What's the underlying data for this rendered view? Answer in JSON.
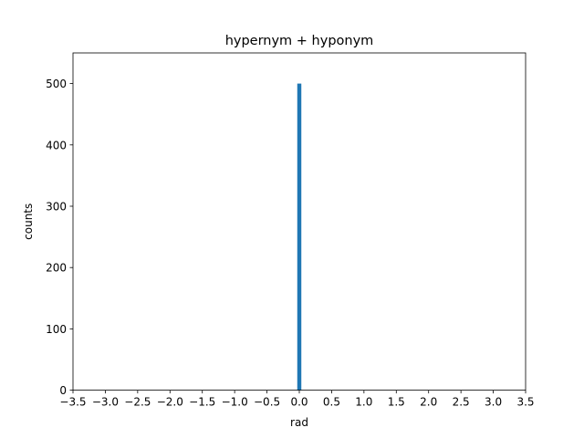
{
  "chart_data": {
    "type": "bar",
    "title": "hypernym + hyponym",
    "xlabel": "rad",
    "ylabel": "counts",
    "xlim": [
      -3.5,
      3.5
    ],
    "ylim": [
      0,
      550
    ],
    "xticks": [
      -3.5,
      -3.0,
      -2.5,
      -2.0,
      -1.5,
      -1.0,
      -0.5,
      0.0,
      0.5,
      1.0,
      1.5,
      2.0,
      2.5,
      3.0,
      3.5
    ],
    "xtick_labels": [
      "−3.5",
      "−3.0",
      "−2.5",
      "−2.0",
      "−1.5",
      "−1.0",
      "−0.5",
      "0.0",
      "0.5",
      "1.0",
      "1.5",
      "2.0",
      "2.5",
      "3.0",
      "3.5"
    ],
    "yticks": [
      0,
      100,
      200,
      300,
      400,
      500
    ],
    "ytick_labels": [
      "0",
      "100",
      "200",
      "300",
      "400",
      "500"
    ],
    "bars": [
      {
        "x_start": -0.0314,
        "x_end": 0.0314,
        "count": 500
      }
    ],
    "grid": false,
    "bar_color": "#1f77b4"
  }
}
